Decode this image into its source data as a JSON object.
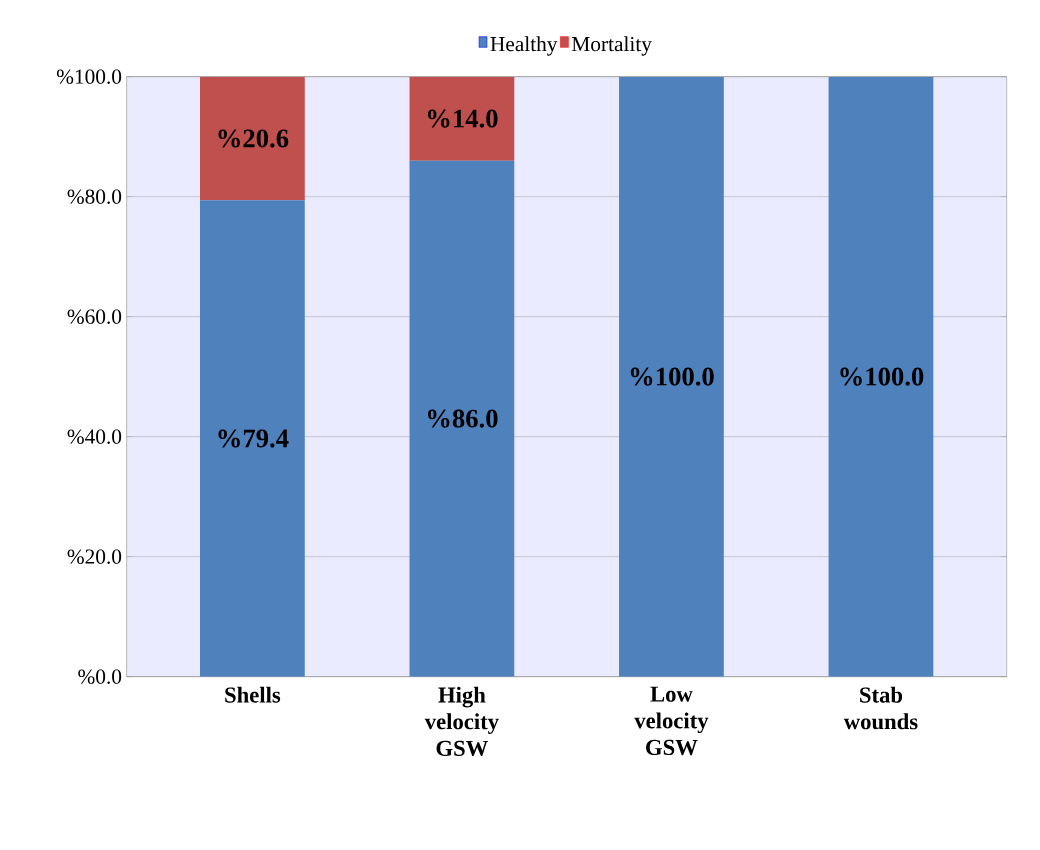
{
  "chart_data": {
    "type": "bar",
    "stacked": true,
    "categories": [
      "Shells",
      "High velocity GSW",
      "Low velocity GSW",
      "Stab wounds"
    ],
    "series": [
      {
        "name": "Healthy",
        "color": "#4f81bd",
        "values": [
          79.4,
          86.0,
          100.0,
          100.0
        ],
        "value_labels": [
          "%79.4",
          "%86.0",
          "%100.0",
          "%100.0"
        ]
      },
      {
        "name": "Mortality",
        "color": "#c0504d",
        "values": [
          20.6,
          14.0,
          null,
          null
        ],
        "value_labels": [
          "%20.6",
          "%14.0",
          null,
          null
        ]
      }
    ],
    "ylim": [
      0,
      100
    ],
    "yticks": [
      {
        "value": 0,
        "label": "%0.0"
      },
      {
        "value": 20,
        "label": "%20.0"
      },
      {
        "value": 40,
        "label": "%40.0"
      },
      {
        "value": 60,
        "label": "%60.0"
      },
      {
        "value": 80,
        "label": "%80.0"
      },
      {
        "value": 100,
        "label": "%100.0"
      }
    ],
    "grid": "y",
    "legend": "top"
  }
}
